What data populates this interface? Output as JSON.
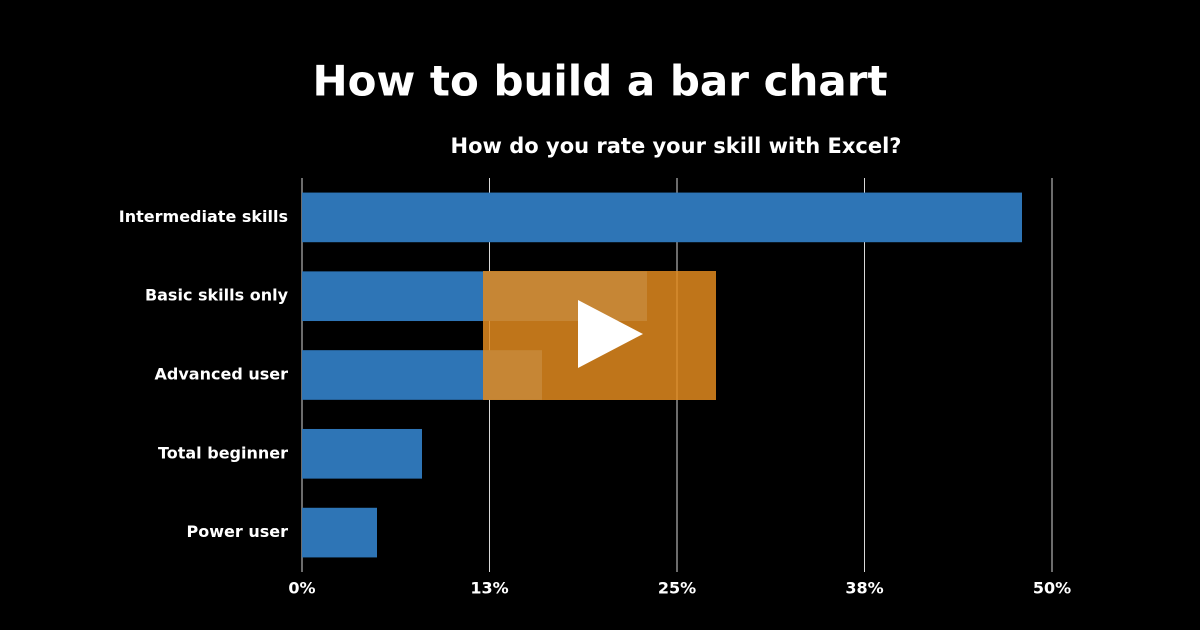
{
  "chart_data": {
    "type": "bar",
    "orientation": "horizontal",
    "title": "How to build a bar chart",
    "subtitle": "How do you rate your skill with Excel?",
    "categories": [
      "Intermediate skills",
      "Basic skills only",
      "Advanced user",
      "Total beginner",
      "Power user"
    ],
    "values": [
      48,
      23,
      16,
      8,
      5
    ],
    "color": "#2e75b6",
    "xlim": [
      0,
      50
    ],
    "xticks": [
      {
        "value": 0,
        "label": "0%"
      },
      {
        "value": 12.5,
        "label": "13%"
      },
      {
        "value": 25,
        "label": "25%"
      },
      {
        "value": 37.5,
        "label": "38%"
      },
      {
        "value": 50,
        "label": "50%"
      }
    ],
    "grid": true
  }
}
